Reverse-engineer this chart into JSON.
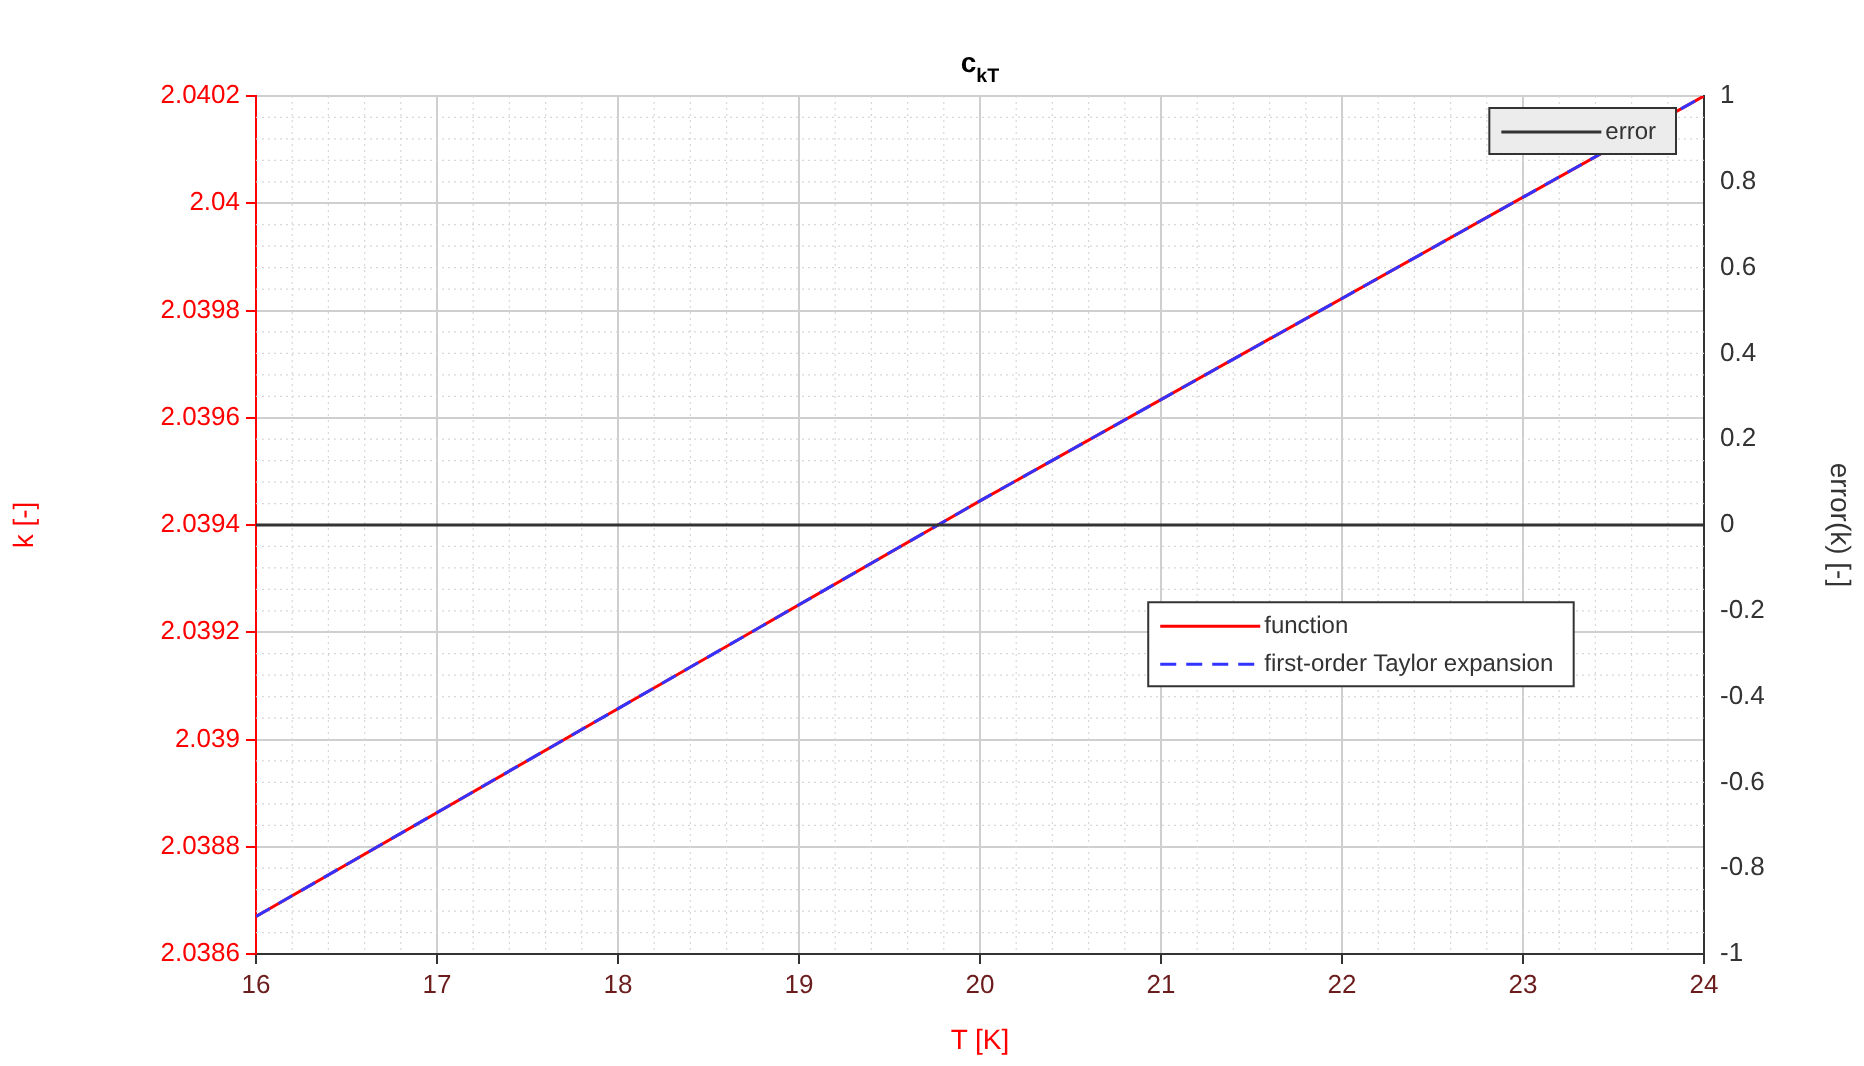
{
  "chart_data": {
    "type": "line",
    "title": "c$_{kT}$",
    "xlabel": "T [K]",
    "ylabel": "k [-]",
    "y2label": "error(k) [-]",
    "x": [
      16,
      20,
      24
    ],
    "series": [
      {
        "name": "function",
        "color": "#ff0000",
        "values": [
          2.03867,
          2.039445,
          2.0402
        ],
        "line_style": "solid"
      },
      {
        "name": "first-order Taylor expansion",
        "color": "#3333ff",
        "values": [
          2.03867,
          2.039445,
          2.0402
        ],
        "line_style": "dashed"
      },
      {
        "name": "error",
        "color": "#333333",
        "values": [
          0,
          0,
          0
        ],
        "axis": "y2",
        "line_style": "solid"
      }
    ],
    "xlim": [
      16,
      24
    ],
    "xticks": [
      16,
      17,
      18,
      19,
      20,
      21,
      22,
      23,
      24
    ],
    "ylim": [
      2.0386,
      2.0402
    ],
    "yticks": [
      2.0386,
      2.0388,
      2.039,
      2.0392,
      2.0394,
      2.0396,
      2.0398,
      2.04,
      2.0402
    ],
    "y2lim": [
      -1,
      1
    ],
    "y2ticks": [
      -1,
      -0.8,
      -0.6,
      -0.4,
      -0.2,
      0,
      0.2,
      0.4,
      0.6,
      0.8,
      1
    ],
    "grid": true,
    "legend": "top right",
    "marker": "none"
  }
}
